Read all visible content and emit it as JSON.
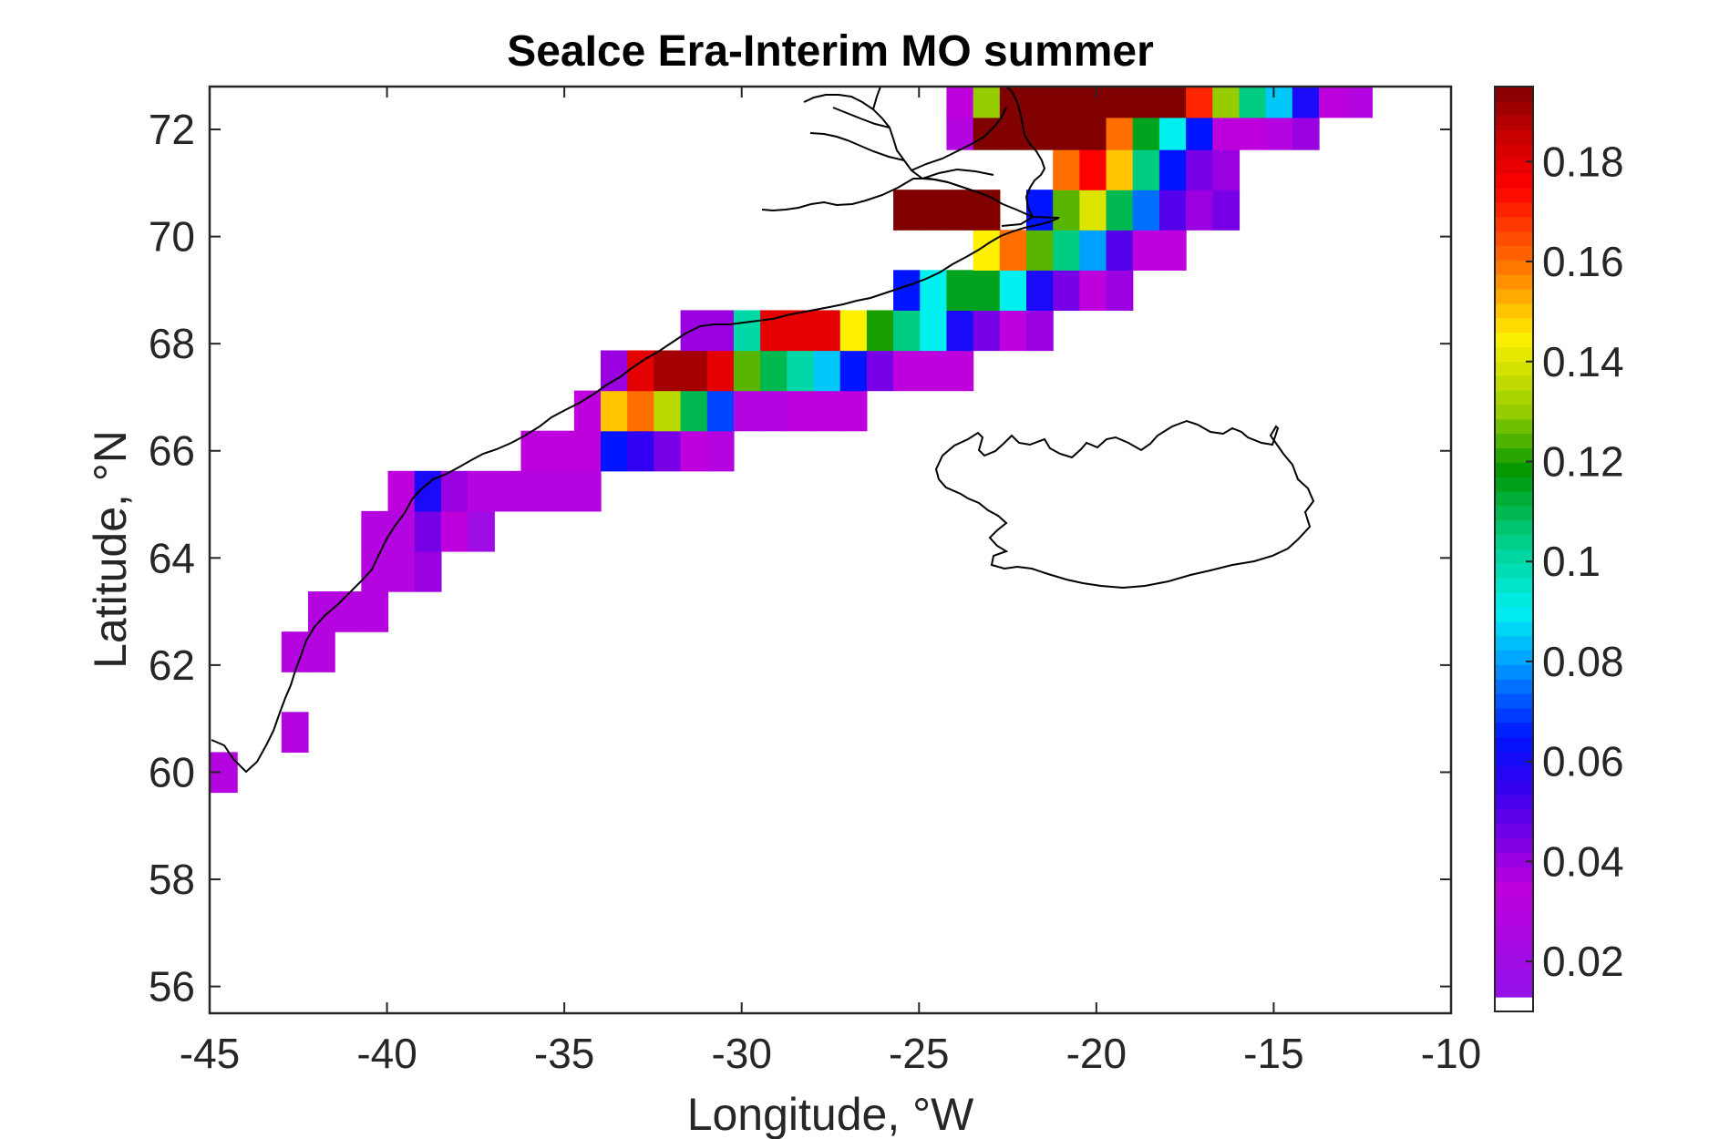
{
  "chart_data": {
    "type": "heatmap",
    "title": "SeaIce Era-Interim MO summer",
    "xlabel": "Longitude, °W",
    "ylabel": "Latitude, °N",
    "xlim": [
      -45,
      -10
    ],
    "ylim": [
      55.5,
      72.8
    ],
    "x_ticks": [
      "-45",
      "-40",
      "-35",
      "-30",
      "-25",
      "-20",
      "-15",
      "-10"
    ],
    "y_ticks": [
      "56",
      "58",
      "60",
      "62",
      "64",
      "66",
      "68",
      "70",
      "72"
    ],
    "colorbar": {
      "range": [
        0.01,
        0.195
      ],
      "ticks": [
        "0.02",
        "0.04",
        "0.06",
        "0.08",
        "0.1",
        "0.12",
        "0.14",
        "0.16",
        "0.18"
      ],
      "colormap": "purple-blue-cyan-green-yellow-red-darkred"
    },
    "cell_width_deg": 0.75,
    "cell_height_deg": 0.75,
    "cells": [
      [
        -44.6,
        60.0,
        0.03
      ],
      [
        -42.6,
        60.75,
        0.03
      ],
      [
        -42.6,
        62.25,
        0.03
      ],
      [
        -41.85,
        62.25,
        0.03
      ],
      [
        -41.85,
        63.0,
        0.03
      ],
      [
        -41.1,
        63.0,
        0.03
      ],
      [
        -40.35,
        63.0,
        0.03
      ],
      [
        -40.35,
        63.75,
        0.03
      ],
      [
        -39.6,
        63.75,
        0.03
      ],
      [
        -38.85,
        63.75,
        0.04
      ],
      [
        -40.35,
        64.5,
        0.03
      ],
      [
        -39.6,
        64.5,
        0.03
      ],
      [
        -38.85,
        64.5,
        0.045
      ],
      [
        -38.1,
        64.5,
        0.035
      ],
      [
        -37.35,
        64.5,
        0.02
      ],
      [
        -39.6,
        65.25,
        0.035
      ],
      [
        -38.85,
        65.25,
        0.06
      ],
      [
        -38.1,
        65.25,
        0.04
      ],
      [
        -37.35,
        65.25,
        0.03
      ],
      [
        -36.6,
        65.25,
        0.03
      ],
      [
        -35.85,
        65.25,
        0.03
      ],
      [
        -35.1,
        65.25,
        0.03
      ],
      [
        -34.35,
        65.25,
        0.03
      ],
      [
        -35.85,
        66.0,
        0.035
      ],
      [
        -35.1,
        66.0,
        0.035
      ],
      [
        -34.35,
        66.0,
        0.035
      ],
      [
        -33.6,
        66.0,
        0.065
      ],
      [
        -32.85,
        66.0,
        0.055
      ],
      [
        -32.1,
        66.0,
        0.045
      ],
      [
        -31.35,
        66.0,
        0.035
      ],
      [
        -30.6,
        66.0,
        0.03
      ],
      [
        -34.35,
        66.75,
        0.035
      ],
      [
        -33.6,
        66.75,
        0.15
      ],
      [
        -32.85,
        66.75,
        0.16
      ],
      [
        -32.1,
        66.75,
        0.135
      ],
      [
        -31.35,
        66.75,
        0.11
      ],
      [
        -30.6,
        66.75,
        0.07
      ],
      [
        -29.85,
        66.75,
        0.03
      ],
      [
        -29.1,
        66.75,
        0.03
      ],
      [
        -28.35,
        66.75,
        0.035
      ],
      [
        -27.6,
        66.75,
        0.035
      ],
      [
        -26.85,
        66.75,
        0.035
      ],
      [
        -33.6,
        67.5,
        0.04
      ],
      [
        -32.85,
        67.5,
        0.18
      ],
      [
        -32.1,
        67.5,
        0.19
      ],
      [
        -31.35,
        67.5,
        0.19
      ],
      [
        -30.6,
        67.5,
        0.18
      ],
      [
        -29.85,
        67.5,
        0.125
      ],
      [
        -29.1,
        67.5,
        0.11
      ],
      [
        -28.35,
        67.5,
        0.1
      ],
      [
        -27.6,
        67.5,
        0.085
      ],
      [
        -26.85,
        67.5,
        0.065
      ],
      [
        -26.1,
        67.5,
        0.045
      ],
      [
        -25.35,
        67.5,
        0.035
      ],
      [
        -24.6,
        67.5,
        0.035
      ],
      [
        -23.85,
        67.5,
        0.035
      ],
      [
        -31.35,
        68.25,
        0.04
      ],
      [
        -30.6,
        68.25,
        0.04
      ],
      [
        -29.85,
        68.25,
        0.1
      ],
      [
        -29.1,
        68.25,
        0.18
      ],
      [
        -28.35,
        68.25,
        0.18
      ],
      [
        -27.6,
        68.25,
        0.18
      ],
      [
        -26.85,
        68.25,
        0.145
      ],
      [
        -26.1,
        68.25,
        0.12
      ],
      [
        -25.35,
        68.25,
        0.105
      ],
      [
        -24.6,
        68.25,
        0.09
      ],
      [
        -23.85,
        68.25,
        0.06
      ],
      [
        -23.1,
        68.25,
        0.045
      ],
      [
        -22.35,
        68.25,
        0.035
      ],
      [
        -21.6,
        68.25,
        0.04
      ],
      [
        -25.35,
        69.0,
        0.065
      ],
      [
        -24.6,
        69.0,
        0.09
      ],
      [
        -23.85,
        69.0,
        0.115
      ],
      [
        -23.1,
        69.0,
        0.115
      ],
      [
        -22.35,
        69.0,
        0.09
      ],
      [
        -21.6,
        69.0,
        0.06
      ],
      [
        -20.85,
        69.0,
        0.045
      ],
      [
        -20.1,
        69.0,
        0.035
      ],
      [
        -19.35,
        69.0,
        0.04
      ],
      [
        -23.1,
        69.75,
        0.145
      ],
      [
        -22.35,
        69.75,
        0.16
      ],
      [
        -21.6,
        69.75,
        0.125
      ],
      [
        -20.85,
        69.75,
        0.105
      ],
      [
        -20.1,
        69.75,
        0.08
      ],
      [
        -19.35,
        69.75,
        0.05
      ],
      [
        -18.6,
        69.75,
        0.035
      ],
      [
        -17.85,
        69.75,
        0.035
      ],
      [
        -25.35,
        70.5,
        0.195
      ],
      [
        -24.6,
        70.5,
        0.195
      ],
      [
        -23.85,
        70.5,
        0.195
      ],
      [
        -23.1,
        70.5,
        0.195
      ],
      [
        -21.6,
        70.5,
        0.065
      ],
      [
        -20.85,
        70.5,
        0.125
      ],
      [
        -20.1,
        70.5,
        0.14
      ],
      [
        -19.35,
        70.5,
        0.11
      ],
      [
        -18.6,
        70.5,
        0.075
      ],
      [
        -17.85,
        70.5,
        0.05
      ],
      [
        -17.1,
        70.5,
        0.04
      ],
      [
        -16.35,
        70.5,
        0.045
      ],
      [
        -20.85,
        71.25,
        0.16
      ],
      [
        -20.1,
        71.25,
        0.175
      ],
      [
        -19.35,
        71.25,
        0.15
      ],
      [
        -18.6,
        71.25,
        0.105
      ],
      [
        -17.85,
        71.25,
        0.065
      ],
      [
        -17.1,
        71.25,
        0.045
      ],
      [
        -16.35,
        71.25,
        0.04
      ],
      [
        -23.85,
        72.0,
        0.03
      ],
      [
        -23.1,
        72.0,
        0.195
      ],
      [
        -22.35,
        72.0,
        0.195
      ],
      [
        -21.6,
        72.0,
        0.195
      ],
      [
        -20.85,
        72.0,
        0.195
      ],
      [
        -20.1,
        72.0,
        0.195
      ],
      [
        -19.35,
        72.0,
        0.16
      ],
      [
        -18.6,
        72.0,
        0.115
      ],
      [
        -17.85,
        72.0,
        0.09
      ],
      [
        -17.1,
        72.0,
        0.065
      ],
      [
        -16.35,
        72.0,
        0.035
      ],
      [
        -15.6,
        72.0,
        0.035
      ],
      [
        -14.85,
        72.0,
        0.03
      ],
      [
        -14.1,
        72.0,
        0.04
      ],
      [
        -23.85,
        72.6,
        0.035
      ],
      [
        -23.1,
        72.6,
        0.13
      ],
      [
        -22.35,
        72.6,
        0.195
      ],
      [
        -21.6,
        72.6,
        0.195
      ],
      [
        -20.85,
        72.6,
        0.195
      ],
      [
        -20.1,
        72.6,
        0.195
      ],
      [
        -19.35,
        72.6,
        0.195
      ],
      [
        -18.6,
        72.6,
        0.195
      ],
      [
        -17.85,
        72.6,
        0.195
      ],
      [
        -17.1,
        72.6,
        0.17
      ],
      [
        -16.35,
        72.6,
        0.13
      ],
      [
        -15.6,
        72.6,
        0.105
      ],
      [
        -14.85,
        72.6,
        0.085
      ],
      [
        -14.1,
        72.6,
        0.06
      ],
      [
        -13.35,
        72.6,
        0.035
      ],
      [
        -12.6,
        72.6,
        0.03
      ]
    ]
  }
}
